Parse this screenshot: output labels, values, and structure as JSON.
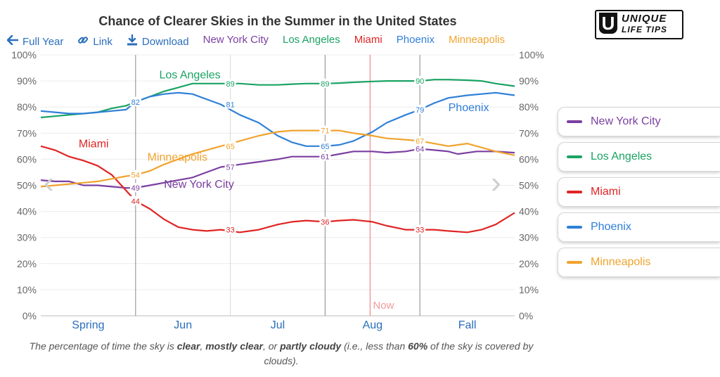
{
  "title": "Chance of Clearer Skies in the Summer in the United States",
  "logo": {
    "text1": "UNIQUE",
    "text2": "LIFE TIPS"
  },
  "toolbar": {
    "full_year": "Full Year",
    "link": "Link",
    "download": "Download"
  },
  "caption": {
    "p1": "The percentage of time the sky is ",
    "b1": "clear",
    "p2": ", ",
    "b2": "mostly clear",
    "p3": ", or ",
    "b3": "partly cloudy",
    "p4": " (i.e., less than ",
    "b4": "60%",
    "p5": " of the sky is covered by clouds)."
  },
  "nav": {
    "prev": "‹",
    "next": "›"
  },
  "colors": {
    "New York City": "#7b3fa1",
    "Los Angeles": "#1aa363",
    "Miami": "#e02424",
    "Phoenix": "#2f7fd8",
    "Minneapolis": "#f0a32e"
  },
  "chart_data": {
    "type": "line",
    "x_range": [
      0,
      100
    ],
    "ylim": [
      0,
      100
    ],
    "y_ticks": [
      "0%",
      "10%",
      "20%",
      "30%",
      "40%",
      "50%",
      "60%",
      "70%",
      "80%",
      "90%",
      "100%"
    ],
    "x_categories": [
      {
        "label": "Spring",
        "x": 10
      },
      {
        "label": "Jun",
        "x": 30
      },
      {
        "label": "Jul",
        "x": 50
      },
      {
        "label": "Aug",
        "x": 70
      },
      {
        "label": "Fall",
        "x": 90
      }
    ],
    "month_dividers": [
      20,
      60,
      80
    ],
    "week_dividers": [
      40
    ],
    "now": {
      "label": "Now",
      "x": 69.5
    },
    "grid": true,
    "legend_position": "right",
    "series": [
      {
        "name": "New York City",
        "label_x": 26,
        "label_y": 49,
        "points": [
          [
            0,
            52
          ],
          [
            3,
            51.5
          ],
          [
            6,
            51.5
          ],
          [
            9,
            50
          ],
          [
            12,
            50
          ],
          [
            15,
            49.5
          ],
          [
            18,
            49
          ],
          [
            20,
            49
          ],
          [
            23,
            50
          ],
          [
            26,
            51
          ],
          [
            29,
            52
          ],
          [
            32,
            53
          ],
          [
            35,
            55
          ],
          [
            38,
            57
          ],
          [
            42,
            58
          ],
          [
            46,
            59
          ],
          [
            50,
            60
          ],
          [
            53,
            61
          ],
          [
            56,
            61
          ],
          [
            60,
            61
          ],
          [
            63,
            62
          ],
          [
            66,
            63
          ],
          [
            70,
            63
          ],
          [
            73,
            62.5
          ],
          [
            77,
            63
          ],
          [
            80,
            64
          ],
          [
            83,
            63.5
          ],
          [
            86,
            63
          ],
          [
            88,
            62
          ],
          [
            92,
            63
          ],
          [
            96,
            63
          ],
          [
            100,
            62.5
          ]
        ],
        "labels": [
          {
            "x": 20,
            "v": "49"
          },
          {
            "x": 40,
            "v": "57"
          },
          {
            "x": 60,
            "v": "61"
          },
          {
            "x": 80,
            "v": "64"
          }
        ]
      },
      {
        "name": "Los Angeles",
        "label_x": 25,
        "label_y": 91,
        "points": [
          [
            0,
            76
          ],
          [
            3,
            76.5
          ],
          [
            6,
            77
          ],
          [
            9,
            77.5
          ],
          [
            12,
            78
          ],
          [
            15,
            79.5
          ],
          [
            18,
            80.5
          ],
          [
            20,
            82
          ],
          [
            23,
            84
          ],
          [
            26,
            86
          ],
          [
            29,
            87.5
          ],
          [
            32,
            89
          ],
          [
            35,
            89
          ],
          [
            38,
            89
          ],
          [
            42,
            89
          ],
          [
            46,
            88.5
          ],
          [
            50,
            88.5
          ],
          [
            53,
            88.8
          ],
          [
            56,
            89
          ],
          [
            60,
            89
          ],
          [
            63,
            89.2
          ],
          [
            66,
            89.5
          ],
          [
            70,
            89.8
          ],
          [
            73,
            90
          ],
          [
            77,
            90
          ],
          [
            80,
            90
          ],
          [
            83,
            90.5
          ],
          [
            86,
            90.5
          ],
          [
            90,
            90.3
          ],
          [
            93,
            90
          ],
          [
            96,
            89
          ],
          [
            100,
            88
          ]
        ],
        "labels": [
          {
            "x": 20,
            "v": "82"
          },
          {
            "x": 40,
            "v": "89"
          },
          {
            "x": 60,
            "v": "89"
          },
          {
            "x": 80,
            "v": "90"
          }
        ]
      },
      {
        "name": "Miami",
        "label_x": 8,
        "label_y": 64.5,
        "points": [
          [
            0,
            65
          ],
          [
            3,
            63.5
          ],
          [
            6,
            61
          ],
          [
            9,
            59.5
          ],
          [
            12,
            57.5
          ],
          [
            15,
            54
          ],
          [
            18,
            48
          ],
          [
            20,
            44
          ],
          [
            23,
            41
          ],
          [
            26,
            37
          ],
          [
            29,
            34
          ],
          [
            32,
            33
          ],
          [
            35,
            32.5
          ],
          [
            38,
            33
          ],
          [
            42,
            32
          ],
          [
            46,
            33
          ],
          [
            50,
            35
          ],
          [
            53,
            36
          ],
          [
            56,
            36.5
          ],
          [
            60,
            36
          ],
          [
            63,
            36.5
          ],
          [
            66,
            36.8
          ],
          [
            70,
            36
          ],
          [
            73,
            34.5
          ],
          [
            77,
            33
          ],
          [
            80,
            33
          ],
          [
            83,
            33
          ],
          [
            86,
            32.5
          ],
          [
            90,
            32
          ],
          [
            93,
            33
          ],
          [
            96,
            35
          ],
          [
            100,
            39.5
          ]
        ],
        "labels": [
          {
            "x": 20,
            "v": "44"
          },
          {
            "x": 40,
            "v": "33"
          },
          {
            "x": 60,
            "v": "36"
          },
          {
            "x": 80,
            "v": "33"
          }
        ]
      },
      {
        "name": "Phoenix",
        "label_x": 86,
        "label_y": 78.5,
        "points": [
          [
            0,
            78.5
          ],
          [
            3,
            78
          ],
          [
            6,
            77.5
          ],
          [
            9,
            77.5
          ],
          [
            12,
            78
          ],
          [
            15,
            78.5
          ],
          [
            18,
            79
          ],
          [
            20,
            82
          ],
          [
            23,
            84
          ],
          [
            26,
            85
          ],
          [
            29,
            85.5
          ],
          [
            32,
            85
          ],
          [
            35,
            83
          ],
          [
            38,
            81
          ],
          [
            42,
            77
          ],
          [
            46,
            74
          ],
          [
            50,
            69
          ],
          [
            53,
            66.5
          ],
          [
            56,
            65
          ],
          [
            60,
            65
          ],
          [
            63,
            65.5
          ],
          [
            66,
            67
          ],
          [
            70,
            70.5
          ],
          [
            73,
            74
          ],
          [
            77,
            77
          ],
          [
            80,
            79
          ],
          [
            83,
            81.5
          ],
          [
            86,
            83.5
          ],
          [
            90,
            84.5
          ],
          [
            93,
            85
          ],
          [
            96,
            85.5
          ],
          [
            100,
            84.5
          ]
        ],
        "labels": [
          {
            "x": 20,
            "v": "82"
          },
          {
            "x": 40,
            "v": "81"
          },
          {
            "x": 60,
            "v": "65"
          },
          {
            "x": 80,
            "v": "79"
          }
        ]
      },
      {
        "name": "Minneapolis",
        "label_x": 22.5,
        "label_y": 59.5,
        "points": [
          [
            0,
            49.5
          ],
          [
            3,
            50
          ],
          [
            6,
            50.5
          ],
          [
            9,
            51
          ],
          [
            12,
            51.5
          ],
          [
            15,
            52.5
          ],
          [
            18,
            53.5
          ],
          [
            20,
            54
          ],
          [
            23,
            55.5
          ],
          [
            26,
            58
          ],
          [
            29,
            60
          ],
          [
            32,
            62
          ],
          [
            35,
            63.5
          ],
          [
            38,
            65
          ],
          [
            42,
            67
          ],
          [
            46,
            69
          ],
          [
            50,
            70.5
          ],
          [
            53,
            71
          ],
          [
            56,
            71
          ],
          [
            60,
            71
          ],
          [
            63,
            71
          ],
          [
            66,
            70
          ],
          [
            70,
            69
          ],
          [
            73,
            68
          ],
          [
            77,
            67.5
          ],
          [
            80,
            67
          ],
          [
            83,
            66
          ],
          [
            86,
            65
          ],
          [
            90,
            66
          ],
          [
            93,
            64.5
          ],
          [
            96,
            63
          ],
          [
            100,
            61.5
          ]
        ],
        "labels": [
          {
            "x": 20,
            "v": "54"
          },
          {
            "x": 40,
            "v": "65"
          },
          {
            "x": 60,
            "v": "71"
          },
          {
            "x": 80,
            "v": "67"
          }
        ]
      }
    ]
  }
}
